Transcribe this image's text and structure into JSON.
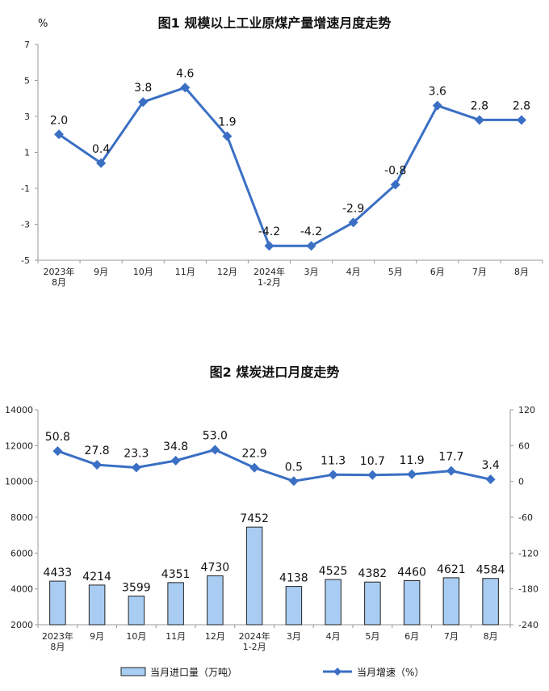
{
  "chart_data": [
    {
      "type": "line",
      "title": "图1  规模以上工业原煤产量增速月度走势",
      "ylabel": "%",
      "categories": [
        "2023年\n8月",
        "9月",
        "10月",
        "11月",
        "12月",
        "2024年\n1-2月",
        "3月",
        "4月",
        "5月",
        "6月",
        "7月",
        "8月"
      ],
      "ylim": [
        -5,
        7
      ],
      "yticks": [
        -5,
        -3,
        -1,
        1,
        3,
        5,
        7
      ],
      "series": [
        {
          "values": [
            2.0,
            0.4,
            3.8,
            4.6,
            1.9,
            -4.2,
            -4.2,
            -2.9,
            -0.8,
            3.6,
            2.8,
            2.8
          ],
          "labels": [
            "2.0",
            "0.4",
            "3.8",
            "4.6",
            "1.9",
            "-4.2",
            "-4.2",
            "-2.9",
            "-0.8",
            "3.6",
            "2.8",
            "2.8"
          ]
        }
      ],
      "grid": false,
      "colors": {
        "line": "#3a6fc4"
      }
    },
    {
      "type": "bar+line",
      "title": "图2  煤炭进口月度走势",
      "categories": [
        "2023年\n8月",
        "9月",
        "10月",
        "11月",
        "12月",
        "2024年\n1-2月",
        "3月",
        "4月",
        "5月",
        "6月",
        "7月",
        "8月"
      ],
      "ylim_left": [
        2000,
        14000
      ],
      "yticks_left": [
        2000,
        4000,
        6000,
        8000,
        10000,
        12000,
        14000
      ],
      "ylim_right": [
        -240,
        120
      ],
      "yticks_right": [
        -240,
        -180,
        -120,
        -60,
        0,
        60,
        120
      ],
      "series": [
        {
          "name": "当月进口量（万吨）",
          "kind": "bar",
          "axis": "left",
          "values": [
            4433,
            4214,
            3599,
            4351,
            4730,
            7452,
            4138,
            4525,
            4382,
            4460,
            4621,
            4584
          ],
          "labels": [
            "4433",
            "4214",
            "3599",
            "4351",
            "4730",
            "7452",
            "4138",
            "4525",
            "4382",
            "4460",
            "4621",
            "4584"
          ]
        },
        {
          "name": "当月增速（%）",
          "kind": "line",
          "axis": "right",
          "values": [
            50.8,
            27.8,
            23.3,
            34.8,
            53.0,
            22.9,
            0.5,
            11.3,
            10.7,
            11.9,
            17.7,
            3.4
          ],
          "labels": [
            "50.8",
            "27.8",
            "23.3",
            "34.8",
            "53.0",
            "22.9",
            "0.5",
            "11.3",
            "10.7",
            "11.9",
            "17.7",
            "3.4"
          ]
        }
      ],
      "legend": "bottom",
      "grid": false,
      "colors": {
        "bar_fill": "#a9cdf2",
        "bar_stroke": "#222222",
        "line": "#3a6fc4"
      }
    }
  ]
}
